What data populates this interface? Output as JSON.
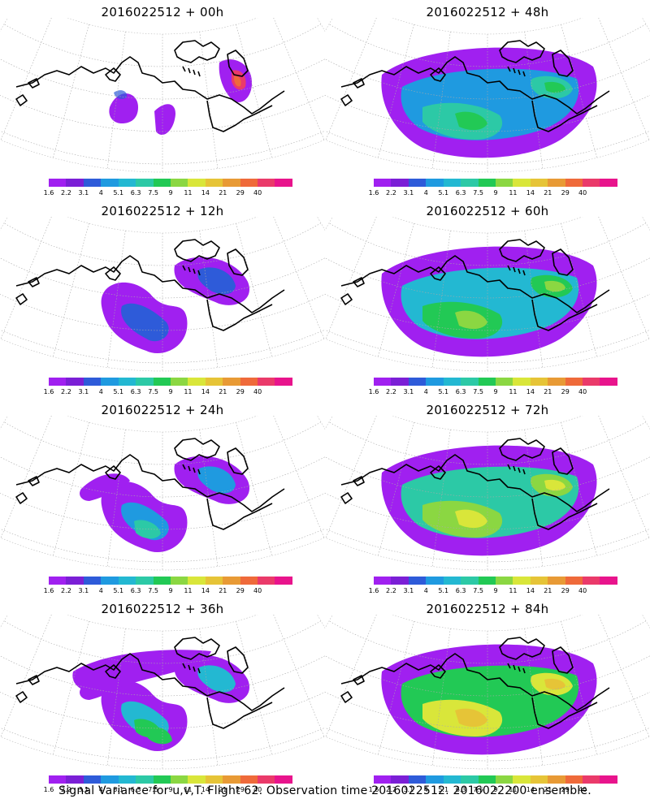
{
  "caption": "Signal Variance for u,v,T. Flight 62. Observation time 2016022512. 2016022200 ensemble.",
  "colorbar": {
    "labels": [
      "1.6",
      "2.2",
      "3.1",
      "4",
      "5.1",
      "6.3",
      "7.5",
      "9",
      "11",
      "14",
      "21",
      "29",
      "40"
    ],
    "colors": [
      "#a020f0",
      "#7b1fd6",
      "#2e5bd9",
      "#1f9ae0",
      "#23b8d2",
      "#2cc9a6",
      "#22c955",
      "#8bd742",
      "#d9e63a",
      "#e6c437",
      "#e89a35",
      "#ef6a3a",
      "#ea3a6a",
      "#e8148c"
    ]
  },
  "panels": [
    {
      "id": "00",
      "title": "2016022512 + 00h",
      "intensity": 0
    },
    {
      "id": "48",
      "title": "2016022512 + 48h",
      "intensity": 4
    },
    {
      "id": "12",
      "title": "2016022512 + 12h",
      "intensity": 1
    },
    {
      "id": "60",
      "title": "2016022512 + 60h",
      "intensity": 5
    },
    {
      "id": "24",
      "title": "2016022512 + 24h",
      "intensity": 2
    },
    {
      "id": "72",
      "title": "2016022512 + 72h",
      "intensity": 6
    },
    {
      "id": "36",
      "title": "2016022512 + 36h",
      "intensity": 3
    },
    {
      "id": "84",
      "title": "2016022512 + 84h",
      "intensity": 7
    }
  ]
}
